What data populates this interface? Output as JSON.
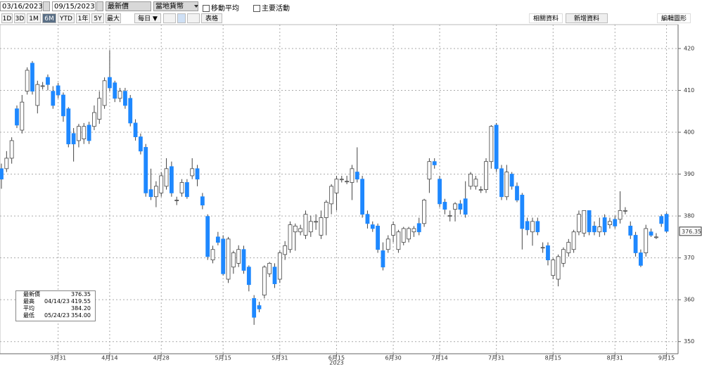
{
  "toolbar": {
    "start_date": "03/16/2023",
    "end_date": "09/15/2023",
    "price_field": "最新價",
    "currency": "當地貨幣",
    "moving_avg": "移動平均",
    "events": "主要活動",
    "ranges": [
      "1D",
      "3D",
      "1M",
      "6M",
      "YTD",
      "1年",
      "5Y",
      "最大"
    ],
    "selected_range_index": 3,
    "frequency": "每日 ▼",
    "table": "表格",
    "related": "相關資料",
    "add_data": "新增資料",
    "edit": "編輯圖形"
  },
  "legend": [
    {
      "name": "最新價",
      "date": null,
      "value": "376.35"
    },
    {
      "name": "最高",
      "date": "04/14/23",
      "value": "419.55"
    },
    {
      "name": "平均",
      "date": null,
      "value": "384.20"
    },
    {
      "name": "最低",
      "date": "05/24/23",
      "value": "354.00"
    }
  ],
  "chart_data": {
    "type": "candlestick",
    "up_color": "#ffffff",
    "down_color": "#1e88ff",
    "grid": true,
    "ylim": [
      347.6,
      425.2
    ],
    "yticks": [
      350,
      360,
      370,
      380,
      390,
      400,
      410,
      420
    ],
    "year_label": "2023",
    "categories": [
      null,
      null,
      null,
      null,
      null,
      null,
      null,
      null,
      null,
      null,
      null,
      "3月31",
      null,
      null,
      null,
      null,
      null,
      null,
      null,
      null,
      null,
      "4月14",
      null,
      null,
      null,
      null,
      null,
      null,
      null,
      null,
      null,
      "4月28",
      null,
      null,
      null,
      null,
      null,
      null,
      null,
      null,
      null,
      null,
      null,
      "5月15",
      null,
      null,
      null,
      null,
      null,
      null,
      null,
      null,
      null,
      null,
      "5月31",
      null,
      null,
      null,
      null,
      null,
      null,
      null,
      null,
      null,
      null,
      "6月15",
      null,
      null,
      null,
      null,
      null,
      null,
      null,
      null,
      null,
      null,
      "6月30",
      null,
      null,
      null,
      null,
      null,
      null,
      null,
      null,
      "7月14",
      null,
      null,
      null,
      null,
      null,
      null,
      null,
      null,
      null,
      null,
      "7月31",
      null,
      null,
      null,
      null,
      null,
      null,
      null,
      null,
      null,
      null,
      "8月15",
      null,
      null,
      null,
      null,
      null,
      null,
      null,
      null,
      null,
      null,
      null,
      "8月31",
      null,
      null,
      null,
      null,
      null,
      null,
      null,
      null,
      null,
      "9月15"
    ],
    "candles": [
      [
        391.3,
        392.5,
        386.5,
        388.8
      ],
      [
        391.3,
        395.5,
        390.5,
        393.8
      ],
      [
        393.8,
        398.8,
        392.5,
        398.0
      ],
      [
        405.6,
        406.4,
        401.0,
        401.7
      ],
      [
        400.5,
        408.9,
        399.7,
        407.2
      ],
      [
        409.8,
        415.5,
        409.0,
        414.8
      ],
      [
        416.5,
        417.0,
        409.0,
        409.8
      ],
      [
        406.4,
        412.3,
        404.5,
        411.4
      ],
      [
        411.1,
        412.0,
        410.2,
        411.1
      ],
      [
        413.1,
        413.8,
        410.0,
        411.4
      ],
      [
        409.8,
        411.0,
        405.6,
        406.4
      ],
      [
        411.1,
        411.8,
        408.1,
        408.9
      ],
      [
        408.9,
        409.5,
        402.5,
        403.9
      ],
      [
        405.6,
        406.0,
        396.4,
        397.2
      ],
      [
        399.7,
        401.0,
        393.0,
        397.2
      ],
      [
        398.0,
        402.0,
        396.4,
        401.4
      ],
      [
        398.4,
        402.2,
        397.2,
        401.4
      ],
      [
        401.7,
        402.5,
        397.2,
        398.0
      ],
      [
        401.4,
        406.4,
        400.5,
        404.7
      ],
      [
        403.1,
        409.8,
        402.0,
        408.1
      ],
      [
        406.4,
        413.1,
        405.6,
        412.3
      ],
      [
        413.1,
        419.55,
        409.8,
        410.6
      ],
      [
        411.8,
        412.3,
        407.2,
        408.1
      ],
      [
        408.1,
        410.6,
        407.2,
        409.8
      ],
      [
        409.8,
        410.6,
        405.6,
        406.4
      ],
      [
        408.1,
        408.9,
        401.4,
        402.2
      ],
      [
        402.2,
        403.1,
        398.0,
        398.9
      ],
      [
        398.9,
        399.7,
        394.7,
        395.5
      ],
      [
        396.4,
        397.2,
        384.6,
        385.5
      ],
      [
        386.3,
        391.3,
        383.8,
        384.6
      ],
      [
        384.6,
        388.3,
        382.1,
        387.1
      ],
      [
        385.5,
        390.5,
        384.6,
        389.6
      ],
      [
        387.1,
        393.8,
        386.3,
        391.3
      ],
      [
        391.8,
        393.0,
        384.6,
        385.5
      ],
      [
        383.8,
        384.6,
        382.6,
        383.8
      ],
      [
        385.5,
        388.8,
        384.6,
        388.0
      ],
      [
        388.0,
        388.8,
        384.1,
        384.6
      ],
      [
        389.6,
        393.8,
        388.8,
        391.3
      ],
      [
        391.3,
        392.2,
        387.1,
        388.8
      ],
      [
        384.6,
        385.5,
        381.6,
        382.6
      ],
      [
        379.9,
        380.4,
        369.5,
        370.3
      ],
      [
        369.5,
        372.9,
        368.7,
        372.0
      ],
      [
        375.0,
        376.2,
        373.0,
        373.7
      ],
      [
        374.5,
        375.4,
        365.8,
        366.2
      ],
      [
        364.9,
        375.0,
        364.0,
        374.5
      ],
      [
        367.8,
        371.7,
        366.2,
        371.2
      ],
      [
        368.7,
        373.0,
        367.8,
        372.0
      ],
      [
        372.0,
        372.9,
        366.2,
        367.0
      ],
      [
        367.8,
        368.2,
        362.0,
        363.6
      ],
      [
        360.3,
        361.1,
        354.0,
        355.8
      ],
      [
        358.6,
        359.5,
        357.0,
        357.8
      ],
      [
        361.1,
        368.2,
        360.3,
        367.8
      ],
      [
        366.2,
        369.0,
        365.4,
        368.7
      ],
      [
        367.8,
        368.7,
        362.8,
        363.8
      ],
      [
        364.9,
        371.7,
        364.0,
        371.2
      ],
      [
        370.8,
        374.0,
        369.5,
        372.9
      ],
      [
        372.0,
        378.7,
        371.2,
        377.9
      ],
      [
        376.2,
        378.2,
        371.7,
        377.6
      ],
      [
        376.2,
        377.9,
        375.4,
        377.0
      ],
      [
        375.4,
        381.3,
        374.5,
        380.4
      ],
      [
        376.2,
        380.1,
        375.0,
        378.7
      ],
      [
        378.7,
        380.4,
        376.7,
        378.7
      ],
      [
        375.4,
        381.3,
        374.5,
        379.6
      ],
      [
        379.6,
        383.8,
        375.4,
        383.3
      ],
      [
        382.9,
        387.6,
        380.4,
        387.1
      ],
      [
        385.5,
        389.6,
        381.3,
        388.8
      ],
      [
        388.8,
        389.6,
        388.0,
        388.8
      ],
      [
        388.3,
        389.6,
        387.6,
        388.3
      ],
      [
        388.0,
        392.2,
        383.8,
        391.3
      ],
      [
        390.5,
        396.4,
        388.0,
        388.8
      ],
      [
        388.8,
        389.6,
        379.6,
        380.4
      ],
      [
        380.4,
        381.3,
        377.0,
        378.2
      ],
      [
        377.9,
        378.7,
        376.2,
        377.0
      ],
      [
        377.6,
        378.2,
        371.2,
        372.0
      ],
      [
        371.7,
        373.7,
        367.0,
        367.8
      ],
      [
        372.0,
        375.4,
        371.2,
        374.5
      ],
      [
        375.4,
        378.7,
        373.7,
        377.9
      ],
      [
        372.0,
        376.7,
        371.2,
        376.2
      ],
      [
        373.7,
        377.4,
        373.0,
        377.0
      ],
      [
        374.5,
        377.4,
        373.7,
        377.0
      ],
      [
        376.2,
        377.6,
        375.0,
        377.0
      ],
      [
        378.2,
        379.6,
        375.4,
        376.2
      ],
      [
        378.2,
        384.1,
        377.4,
        383.8
      ],
      [
        388.8,
        393.8,
        385.5,
        393.0
      ],
      [
        393.0,
        393.8,
        391.3,
        392.2
      ],
      [
        388.8,
        389.6,
        382.1,
        382.9
      ],
      [
        383.3,
        384.1,
        380.4,
        381.6
      ],
      [
        380.1,
        381.3,
        378.7,
        380.1
      ],
      [
        381.6,
        383.3,
        378.7,
        382.9
      ],
      [
        382.9,
        383.8,
        380.4,
        381.6
      ],
      [
        384.1,
        388.3,
        379.6,
        380.4
      ],
      [
        387.1,
        390.5,
        386.3,
        390.0
      ],
      [
        387.1,
        389.6,
        386.3,
        388.8
      ],
      [
        386.3,
        387.1,
        385.5,
        386.3
      ],
      [
        386.3,
        393.8,
        385.5,
        393.0
      ],
      [
        393.0,
        401.7,
        391.3,
        401.4
      ],
      [
        401.7,
        402.2,
        390.5,
        391.3
      ],
      [
        391.3,
        392.2,
        383.8,
        384.6
      ],
      [
        384.6,
        392.2,
        383.8,
        390.5
      ],
      [
        390.0,
        390.5,
        386.3,
        387.1
      ],
      [
        387.1,
        388.0,
        383.3,
        383.8
      ],
      [
        385.0,
        385.5,
        372.0,
        377.0
      ],
      [
        378.7,
        379.6,
        375.4,
        376.7
      ],
      [
        376.2,
        379.6,
        372.9,
        378.7
      ],
      [
        378.7,
        379.6,
        375.4,
        376.2
      ],
      [
        372.5,
        373.7,
        371.2,
        372.5
      ],
      [
        372.9,
        373.7,
        368.2,
        369.5
      ],
      [
        365.8,
        369.9,
        364.9,
        369.5
      ],
      [
        364.9,
        370.8,
        363.2,
        370.3
      ],
      [
        368.7,
        372.5,
        367.8,
        372.0
      ],
      [
        371.2,
        374.5,
        370.3,
        373.7
      ],
      [
        372.0,
        376.7,
        371.2,
        376.2
      ],
      [
        376.2,
        381.3,
        375.4,
        380.4
      ],
      [
        375.9,
        381.3,
        375.0,
        381.3
      ],
      [
        381.3,
        381.3,
        375.4,
        376.2
      ],
      [
        377.6,
        378.7,
        375.4,
        376.2
      ],
      [
        376.2,
        379.6,
        375.0,
        377.4
      ],
      [
        379.6,
        380.4,
        375.4,
        376.2
      ],
      [
        377.9,
        379.6,
        377.0,
        378.7
      ],
      [
        379.2,
        380.1,
        377.0,
        377.6
      ],
      [
        379.2,
        385.9,
        378.2,
        381.3
      ],
      [
        381.3,
        382.1,
        380.4,
        381.3
      ],
      [
        377.6,
        378.7,
        374.5,
        375.4
      ],
      [
        375.4,
        376.2,
        370.3,
        371.2
      ],
      [
        371.2,
        372.0,
        367.8,
        368.2
      ],
      [
        371.2,
        377.9,
        370.3,
        377.0
      ],
      [
        376.2,
        377.0,
        375.0,
        375.4
      ],
      [
        375.0,
        375.9,
        374.5,
        375.0
      ],
      [
        379.9,
        380.4,
        377.4,
        378.2
      ],
      [
        380.4,
        380.8,
        376.0,
        376.35
      ]
    ]
  }
}
